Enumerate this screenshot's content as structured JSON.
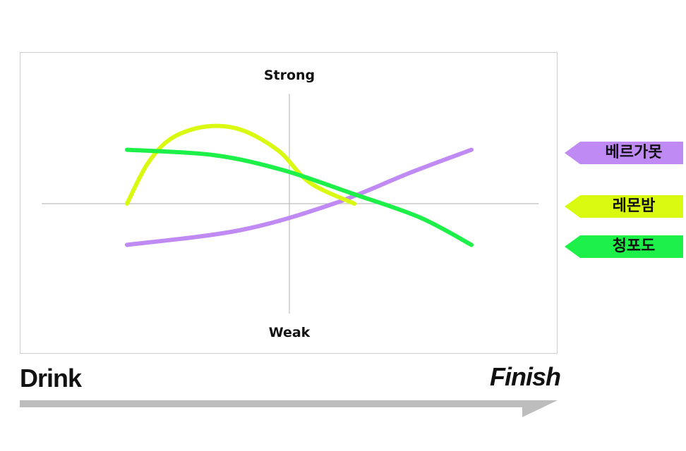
{
  "chart_data": {
    "type": "line",
    "axis_labels": {
      "top": "Strong",
      "bottom": "Weak"
    },
    "x_range": [
      0,
      1
    ],
    "y_range": [
      -1,
      1
    ],
    "grid": false,
    "legend_placement": "right",
    "series": [
      {
        "name": "베르가못",
        "color": "#c08af5",
        "points": [
          [
            0.0,
            -0.39
          ],
          [
            0.33,
            -0.25
          ],
          [
            0.6,
            0.0
          ],
          [
            0.82,
            0.29
          ],
          [
            1.0,
            0.51
          ]
        ]
      },
      {
        "name": "레몬밤",
        "color": "#d9fa10",
        "points": [
          [
            0.0,
            0.0
          ],
          [
            0.06,
            0.38
          ],
          [
            0.13,
            0.62
          ],
          [
            0.23,
            0.73
          ],
          [
            0.33,
            0.7
          ],
          [
            0.44,
            0.5
          ],
          [
            0.53,
            0.2
          ],
          [
            0.66,
            0.0
          ]
        ]
      },
      {
        "name": "청포도",
        "color": "#1ef04a",
        "points": [
          [
            0.0,
            0.51
          ],
          [
            0.25,
            0.46
          ],
          [
            0.45,
            0.32
          ],
          [
            0.65,
            0.1
          ],
          [
            0.85,
            -0.13
          ],
          [
            1.0,
            -0.39
          ]
        ]
      }
    ]
  },
  "time_axis": {
    "start": "Drink",
    "end": "Finish",
    "arrow_color": "#bdbdbd"
  }
}
